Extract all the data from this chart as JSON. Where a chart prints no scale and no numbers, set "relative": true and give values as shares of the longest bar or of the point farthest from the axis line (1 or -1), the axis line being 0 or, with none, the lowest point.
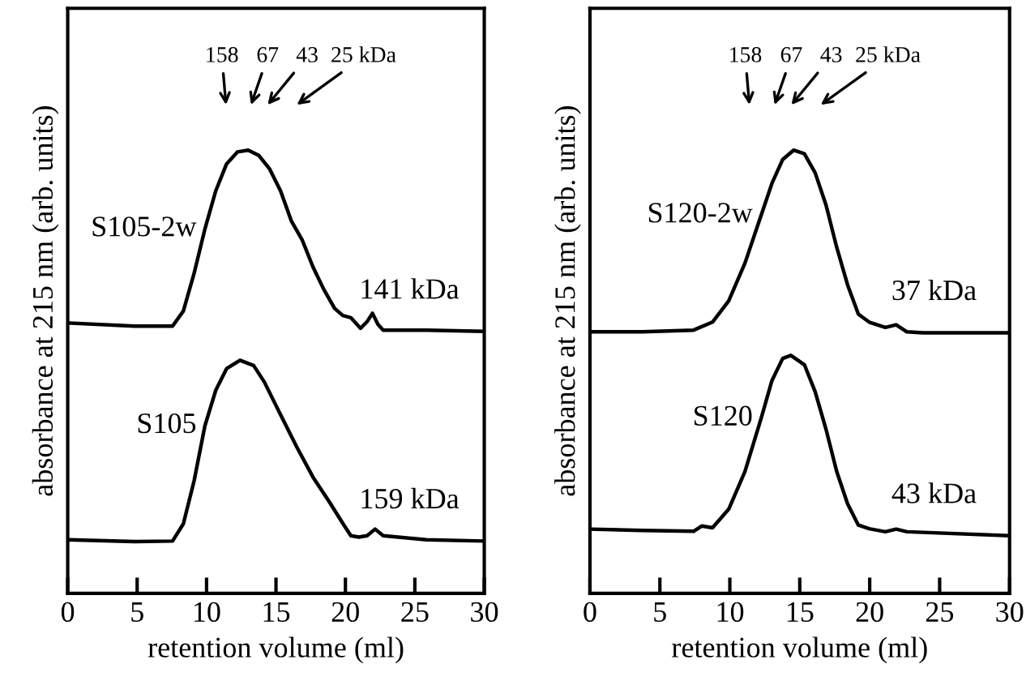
{
  "chart_data": [
    {
      "type": "line",
      "relative": true,
      "xlabel": "retention volume (ml)",
      "ylabel": "absorbance at 215 nm (arb. units)",
      "xlim": [
        0,
        30
      ],
      "xticks": [
        0,
        5,
        10,
        15,
        20,
        25,
        30
      ],
      "grid": false,
      "legend": false,
      "marker": "none",
      "line_style": "solid",
      "tick_labels": "x",
      "series": [
        {
          "name": "S105-2w",
          "color": "#000000",
          "x": [
            0.08,
            4.82,
            7.55,
            8.33,
            9.11,
            9.88,
            10.66,
            11.44,
            12.22,
            13.0,
            13.77,
            14.55,
            15.33,
            16.11,
            16.89,
            17.67,
            18.44,
            19.22,
            19.81,
            20.39,
            21.09,
            21.56,
            21.95,
            22.34,
            22.72,
            25.84,
            30.0
          ],
          "values": [
            0.61,
            0.603,
            0.603,
            0.637,
            0.723,
            0.822,
            0.908,
            0.969,
            0.996,
            1.0,
            0.988,
            0.957,
            0.908,
            0.84,
            0.797,
            0.736,
            0.686,
            0.643,
            0.627,
            0.622,
            0.598,
            0.613,
            0.632,
            0.607,
            0.594,
            0.594,
            0.591
          ]
        },
        {
          "name": "S105",
          "color": "#000000",
          "x": [
            0.08,
            4.82,
            7.55,
            8.33,
            9.11,
            9.88,
            10.66,
            11.44,
            12.41,
            13.39,
            14.16,
            15.33,
            16.5,
            17.67,
            18.83,
            19.81,
            20.39,
            20.97,
            21.56,
            22.14,
            22.72,
            25.84,
            30.0
          ],
          "values": [
            0.121,
            0.117,
            0.118,
            0.157,
            0.255,
            0.378,
            0.458,
            0.507,
            0.526,
            0.514,
            0.477,
            0.403,
            0.33,
            0.262,
            0.207,
            0.158,
            0.13,
            0.127,
            0.13,
            0.145,
            0.13,
            0.121,
            0.118
          ]
        }
      ],
      "annotations": [
        "158",
        "67",
        "43",
        "25 kDa",
        "141 kDa",
        "159 kDa"
      ]
    },
    {
      "type": "line",
      "relative": true,
      "xlabel": "retention volume (ml)",
      "ylabel": "absorbance at 215 nm (arb. units)",
      "xlim": [
        0,
        30
      ],
      "xticks": [
        0,
        5,
        10,
        15,
        20,
        25,
        30
      ],
      "grid": false,
      "legend": false,
      "marker": "none",
      "line_style": "solid",
      "tick_labels": "x",
      "series": [
        {
          "name": "S120-2w",
          "color": "#000000",
          "x": [
            0.08,
            3.75,
            7.41,
            8.76,
            9.92,
            11.08,
            12.24,
            13.01,
            13.78,
            14.56,
            15.33,
            16.1,
            16.87,
            17.64,
            18.42,
            19.19,
            19.96,
            21.12,
            21.89,
            22.66,
            23.82,
            30.0
          ],
          "values": [
            0.59,
            0.59,
            0.594,
            0.612,
            0.66,
            0.745,
            0.853,
            0.925,
            0.979,
            1.0,
            0.992,
            0.949,
            0.877,
            0.781,
            0.696,
            0.63,
            0.612,
            0.6,
            0.606,
            0.59,
            0.588,
            0.588
          ]
        },
        {
          "name": "S120",
          "color": "#000000",
          "x": [
            0.08,
            3.75,
            7.41,
            7.99,
            8.76,
            9.92,
            11.08,
            12.24,
            13.01,
            13.78,
            14.36,
            15.33,
            16.1,
            16.87,
            17.64,
            18.42,
            19.19,
            19.96,
            21.12,
            21.89,
            22.66,
            30.0
          ],
          "values": [
            0.145,
            0.142,
            0.14,
            0.152,
            0.148,
            0.19,
            0.275,
            0.395,
            0.48,
            0.53,
            0.537,
            0.516,
            0.455,
            0.371,
            0.275,
            0.202,
            0.154,
            0.146,
            0.139,
            0.145,
            0.139,
            0.13
          ]
        }
      ],
      "annotations": [
        "158",
        "67",
        "43",
        "25 kDa",
        "37 kDa",
        "43 kDa"
      ]
    }
  ]
}
